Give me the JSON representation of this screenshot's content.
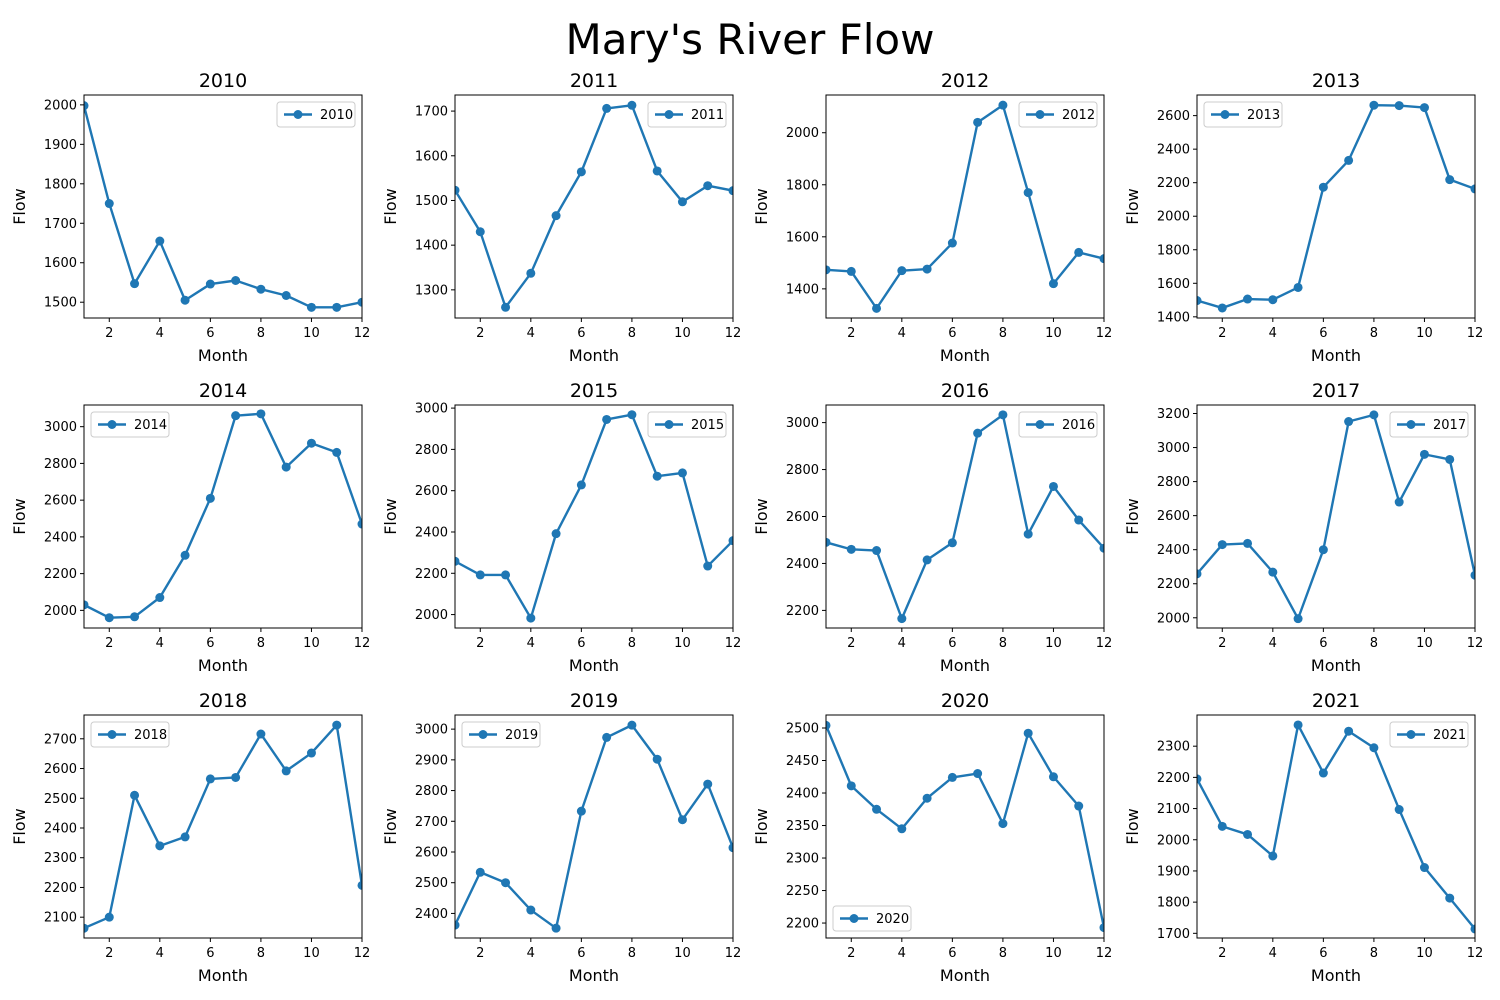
{
  "figure": {
    "title": "Mary's River Flow",
    "line_color": "#1f77b4"
  },
  "chart_data": [
    {
      "type": "line",
      "title": "2010",
      "xlabel": "Month",
      "ylabel": "Flow",
      "xlim": [
        1,
        12
      ],
      "ylim": [
        1460,
        2025
      ],
      "xticks": [
        2,
        4,
        6,
        8,
        10,
        12
      ],
      "yticks": [
        1500,
        1600,
        1700,
        1800,
        1900,
        2000
      ],
      "legend_loc": "upper-right",
      "x": [
        1,
        2,
        3,
        4,
        5,
        6,
        7,
        8,
        9,
        10,
        11,
        12
      ],
      "series": [
        {
          "name": "2010",
          "values": [
            1998,
            1750,
            1547,
            1655,
            1505,
            1546,
            1555,
            1533,
            1517,
            1487,
            1487,
            1500
          ]
        }
      ]
    },
    {
      "type": "line",
      "title": "2011",
      "xlabel": "Month",
      "ylabel": "Flow",
      "xlim": [
        1,
        12
      ],
      "ylim": [
        1237,
        1736
      ],
      "xticks": [
        2,
        4,
        6,
        8,
        10,
        12
      ],
      "yticks": [
        1300,
        1400,
        1500,
        1600,
        1700
      ],
      "legend_loc": "upper-right",
      "x": [
        1,
        2,
        3,
        4,
        5,
        6,
        7,
        8,
        9,
        10,
        11,
        12
      ],
      "series": [
        {
          "name": "2011",
          "values": [
            1523,
            1430,
            1261,
            1337,
            1466,
            1564,
            1706,
            1713,
            1566,
            1497,
            1533,
            1522
          ]
        }
      ]
    },
    {
      "type": "line",
      "title": "2012",
      "xlabel": "Month",
      "ylabel": "Flow",
      "xlim": [
        1,
        12
      ],
      "ylim": [
        1288,
        2145
      ],
      "xticks": [
        2,
        4,
        6,
        8,
        10,
        12
      ],
      "yticks": [
        1400,
        1600,
        1800,
        2000
      ],
      "legend_loc": "upper-right",
      "x": [
        1,
        2,
        3,
        4,
        5,
        6,
        7,
        8,
        9,
        10,
        11,
        12
      ],
      "series": [
        {
          "name": "2012",
          "values": [
            1473,
            1467,
            1325,
            1470,
            1476,
            1576,
            2040,
            2106,
            1770,
            1420,
            1540,
            1516
          ]
        }
      ]
    },
    {
      "type": "line",
      "title": "2013",
      "xlabel": "Month",
      "ylabel": "Flow",
      "xlim": [
        1,
        12
      ],
      "ylim": [
        1393,
        2723
      ],
      "xticks": [
        2,
        4,
        6,
        8,
        10,
        12
      ],
      "yticks": [
        1400,
        1600,
        1800,
        2000,
        2200,
        2400,
        2600
      ],
      "legend_loc": "upper-left",
      "x": [
        1,
        2,
        3,
        4,
        5,
        6,
        7,
        8,
        9,
        10,
        11,
        12
      ],
      "series": [
        {
          "name": "2013",
          "values": [
            1497,
            1453,
            1506,
            1502,
            1575,
            2173,
            2333,
            2662,
            2660,
            2648,
            2218,
            2163
          ]
        }
      ]
    },
    {
      "type": "line",
      "title": "2014",
      "xlabel": "Month",
      "ylabel": "Flow",
      "xlim": [
        1,
        12
      ],
      "ylim": [
        1904,
        3118
      ],
      "xticks": [
        2,
        4,
        6,
        8,
        10,
        12
      ],
      "yticks": [
        2000,
        2200,
        2400,
        2600,
        2800,
        3000
      ],
      "legend_loc": "upper-left",
      "x": [
        1,
        2,
        3,
        4,
        5,
        6,
        7,
        8,
        9,
        10,
        11,
        12
      ],
      "series": [
        {
          "name": "2014",
          "values": [
            2030,
            1960,
            1965,
            2070,
            2300,
            2610,
            3060,
            3070,
            2780,
            2910,
            2860,
            2470
          ]
        }
      ]
    },
    {
      "type": "line",
      "title": "2015",
      "xlabel": "Month",
      "ylabel": "Flow",
      "xlim": [
        1,
        12
      ],
      "ylim": [
        1935,
        3015
      ],
      "xticks": [
        2,
        4,
        6,
        8,
        10,
        12
      ],
      "yticks": [
        2000,
        2200,
        2400,
        2600,
        2800,
        3000
      ],
      "legend_loc": "upper-right",
      "x": [
        1,
        2,
        3,
        4,
        5,
        6,
        7,
        8,
        9,
        10,
        11,
        12
      ],
      "series": [
        {
          "name": "2015",
          "values": [
            2258,
            2192,
            2192,
            1983,
            2392,
            2628,
            2945,
            2968,
            2670,
            2686,
            2235,
            2358
          ]
        }
      ]
    },
    {
      "type": "line",
      "title": "2016",
      "xlabel": "Month",
      "ylabel": "Flow",
      "xlim": [
        1,
        12
      ],
      "ylim": [
        2125,
        3075
      ],
      "xticks": [
        2,
        4,
        6,
        8,
        10,
        12
      ],
      "yticks": [
        2200,
        2400,
        2600,
        2800,
        3000
      ],
      "legend_loc": "upper-right",
      "x": [
        1,
        2,
        3,
        4,
        5,
        6,
        7,
        8,
        9,
        10,
        11,
        12
      ],
      "series": [
        {
          "name": "2016",
          "values": [
            2490,
            2460,
            2455,
            2165,
            2415,
            2488,
            2955,
            3033,
            2525,
            2728,
            2585,
            2465
          ]
        }
      ]
    },
    {
      "type": "line",
      "title": "2017",
      "xlabel": "Month",
      "ylabel": "Flow",
      "xlim": [
        1,
        12
      ],
      "ylim": [
        1940,
        3250
      ],
      "xticks": [
        2,
        4,
        6,
        8,
        10,
        12
      ],
      "yticks": [
        2000,
        2200,
        2400,
        2600,
        2800,
        3000,
        3200
      ],
      "legend_loc": "upper-right",
      "x": [
        1,
        2,
        3,
        4,
        5,
        6,
        7,
        8,
        9,
        10,
        11,
        12
      ],
      "series": [
        {
          "name": "2017",
          "values": [
            2258,
            2430,
            2437,
            2268,
            1995,
            2400,
            3153,
            3192,
            2680,
            2960,
            2930,
            2250
          ]
        }
      ]
    },
    {
      "type": "line",
      "title": "2018",
      "xlabel": "Month",
      "ylabel": "Flow",
      "xlim": [
        1,
        12
      ],
      "ylim": [
        2030,
        2780
      ],
      "xticks": [
        2,
        4,
        6,
        8,
        10,
        12
      ],
      "yticks": [
        2100,
        2200,
        2300,
        2400,
        2500,
        2600,
        2700
      ],
      "legend_loc": "upper-left",
      "x": [
        1,
        2,
        3,
        4,
        5,
        6,
        7,
        8,
        9,
        10,
        11,
        12
      ],
      "series": [
        {
          "name": "2018",
          "values": [
            2063,
            2100,
            2510,
            2340,
            2370,
            2565,
            2570,
            2716,
            2592,
            2652,
            2746,
            2207
          ]
        }
      ]
    },
    {
      "type": "line",
      "title": "2019",
      "xlabel": "Month",
      "ylabel": "Flow",
      "xlim": [
        1,
        12
      ],
      "ylim": [
        2320,
        3046
      ],
      "xticks": [
        2,
        4,
        6,
        8,
        10,
        12
      ],
      "yticks": [
        2400,
        2500,
        2600,
        2700,
        2800,
        2900,
        3000
      ],
      "legend_loc": "upper-left",
      "x": [
        1,
        2,
        3,
        4,
        5,
        6,
        7,
        8,
        9,
        10,
        11,
        12
      ],
      "series": [
        {
          "name": "2019",
          "values": [
            2362,
            2534,
            2500,
            2411,
            2352,
            2733,
            2973,
            3013,
            2902,
            2705,
            2821,
            2614
          ]
        }
      ]
    },
    {
      "type": "line",
      "title": "2020",
      "xlabel": "Month",
      "ylabel": "Flow",
      "xlim": [
        1,
        12
      ],
      "ylim": [
        2177,
        2520
      ],
      "xticks": [
        2,
        4,
        6,
        8,
        10,
        12
      ],
      "yticks": [
        2200,
        2250,
        2300,
        2350,
        2400,
        2450,
        2500
      ],
      "legend_loc": "lower-left",
      "x": [
        1,
        2,
        3,
        4,
        5,
        6,
        7,
        8,
        9,
        10,
        11,
        12
      ],
      "series": [
        {
          "name": "2020",
          "values": [
            2504,
            2411,
            2375,
            2345,
            2392,
            2424,
            2430,
            2353,
            2492,
            2425,
            2380,
            2193
          ]
        }
      ]
    },
    {
      "type": "line",
      "title": "2021",
      "xlabel": "Month",
      "ylabel": "Flow",
      "xlim": [
        1,
        12
      ],
      "ylim": [
        1685,
        2400
      ],
      "xticks": [
        2,
        4,
        6,
        8,
        10,
        12
      ],
      "yticks": [
        1700,
        1800,
        1900,
        2000,
        2100,
        2200,
        2300
      ],
      "legend_loc": "upper-right",
      "x": [
        1,
        2,
        3,
        4,
        5,
        6,
        7,
        8,
        9,
        10,
        11,
        12
      ],
      "series": [
        {
          "name": "2021",
          "values": [
            2195,
            2043,
            2017,
            1948,
            2368,
            2214,
            2348,
            2295,
            2097,
            1911,
            1813,
            1714
          ]
        }
      ]
    }
  ]
}
